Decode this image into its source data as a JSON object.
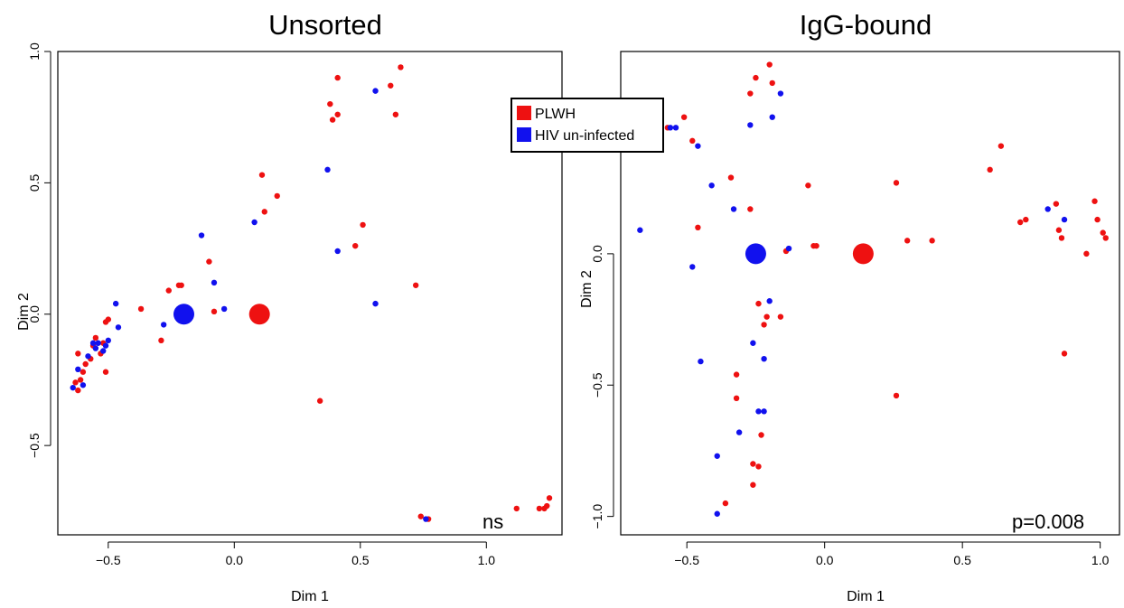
{
  "colors": {
    "PLWH": "#ee1111",
    "HIV un-infected": "#1111ee"
  },
  "legend": {
    "position": "top-center",
    "entries": [
      {
        "label": "PLWH",
        "color": "#ee1111"
      },
      {
        "label": "HIV un-infected",
        "color": "#1111ee"
      }
    ]
  },
  "chart_data": [
    {
      "type": "scatter",
      "title": "Unsorted",
      "xlabel": "Dim 1",
      "ylabel": "Dim 2",
      "xlim": [
        -0.7,
        1.3
      ],
      "ylim": [
        -0.84,
        1.0
      ],
      "xticks": [
        -0.5,
        0.0,
        0.5,
        1.0
      ],
      "xtick_labels": [
        "−0.5",
        "0.0",
        "0.5",
        "1.0"
      ],
      "yticks": [
        -0.5,
        0.0,
        0.5,
        1.0
      ],
      "ytick_labels": [
        "−0.5",
        "0.0",
        "0.5",
        "1.0"
      ],
      "annotation": "ns",
      "centroids": [
        {
          "series": "HIV un-infected",
          "x": -0.2,
          "y": 0.0
        },
        {
          "series": "PLWH",
          "x": 0.1,
          "y": 0.0
        }
      ],
      "series": [
        {
          "name": "PLWH",
          "points": [
            [
              -0.63,
              -0.26
            ],
            [
              -0.62,
              -0.29
            ],
            [
              -0.61,
              -0.25
            ],
            [
              -0.6,
              -0.22
            ],
            [
              -0.59,
              -0.19
            ],
            [
              -0.57,
              -0.17
            ],
            [
              -0.56,
              -0.12
            ],
            [
              -0.55,
              -0.09
            ],
            [
              -0.53,
              -0.15
            ],
            [
              -0.52,
              -0.11
            ],
            [
              -0.51,
              -0.22
            ],
            [
              -0.51,
              -0.03
            ],
            [
              -0.5,
              -0.02
            ],
            [
              -0.62,
              -0.15
            ],
            [
              -0.37,
              0.02
            ],
            [
              -0.29,
              -0.1
            ],
            [
              -0.26,
              0.09
            ],
            [
              -0.22,
              0.11
            ],
            [
              -0.21,
              0.11
            ],
            [
              -0.1,
              0.2
            ],
            [
              -0.08,
              0.01
            ],
            [
              0.11,
              0.53
            ],
            [
              0.12,
              0.39
            ],
            [
              0.17,
              0.45
            ],
            [
              0.34,
              -0.33
            ],
            [
              0.38,
              0.8
            ],
            [
              0.39,
              0.74
            ],
            [
              0.41,
              0.76
            ],
            [
              0.41,
              0.9
            ],
            [
              0.48,
              0.26
            ],
            [
              0.51,
              0.34
            ],
            [
              0.62,
              0.87
            ],
            [
              0.64,
              0.76
            ],
            [
              0.66,
              0.94
            ],
            [
              0.72,
              0.11
            ],
            [
              0.74,
              -0.77
            ],
            [
              0.77,
              -0.78
            ],
            [
              1.12,
              -0.74
            ],
            [
              1.21,
              -0.74
            ],
            [
              1.23,
              -0.74
            ],
            [
              1.24,
              -0.73
            ],
            [
              1.25,
              -0.7
            ]
          ]
        },
        {
          "name": "HIV un-infected",
          "points": [
            [
              -0.64,
              -0.28
            ],
            [
              -0.62,
              -0.21
            ],
            [
              -0.6,
              -0.27
            ],
            [
              -0.58,
              -0.16
            ],
            [
              -0.56,
              -0.11
            ],
            [
              -0.55,
              -0.13
            ],
            [
              -0.54,
              -0.11
            ],
            [
              -0.52,
              -0.14
            ],
            [
              -0.51,
              -0.12
            ],
            [
              -0.5,
              -0.1
            ],
            [
              -0.47,
              0.04
            ],
            [
              -0.46,
              -0.05
            ],
            [
              -0.28,
              -0.04
            ],
            [
              -0.13,
              0.3
            ],
            [
              -0.08,
              0.12
            ],
            [
              -0.04,
              0.02
            ],
            [
              0.08,
              0.35
            ],
            [
              0.37,
              0.55
            ],
            [
              0.41,
              0.24
            ],
            [
              0.56,
              0.85
            ],
            [
              0.56,
              0.04
            ],
            [
              0.76,
              -0.78
            ]
          ]
        }
      ]
    },
    {
      "type": "scatter",
      "title": "IgG-bound",
      "xlabel": "Dim 1",
      "ylabel": "Dim 2",
      "xlim": [
        -0.74,
        1.07
      ],
      "ylim": [
        -1.07,
        0.77
      ],
      "xticks": [
        -0.5,
        0.0,
        0.5,
        1.0
      ],
      "xtick_labels": [
        "−0.5",
        "0.0",
        "0.5",
        "1.0"
      ],
      "yticks": [
        -1.0,
        -0.5,
        0.0
      ],
      "ytick_labels": [
        "−1.0",
        "−0.5",
        "0.0"
      ],
      "annotation": "p=0.008",
      "centroids": [
        {
          "series": "HIV un-infected",
          "x": -0.25,
          "y": 0.0
        },
        {
          "series": "PLWH",
          "x": 0.14,
          "y": 0.0
        }
      ],
      "series": [
        {
          "name": "PLWH",
          "points": [
            [
              -0.57,
              0.48
            ],
            [
              -0.51,
              0.52
            ],
            [
              -0.48,
              0.43
            ],
            [
              -0.46,
              0.1
            ],
            [
              -0.34,
              0.29
            ],
            [
              -0.27,
              0.61
            ],
            [
              -0.27,
              0.17
            ],
            [
              -0.25,
              0.67
            ],
            [
              -0.2,
              0.72
            ],
            [
              -0.19,
              0.65
            ],
            [
              -0.24,
              -0.19
            ],
            [
              -0.22,
              -0.27
            ],
            [
              -0.21,
              -0.24
            ],
            [
              -0.16,
              -0.24
            ],
            [
              -0.14,
              0.01
            ],
            [
              -0.06,
              0.26
            ],
            [
              -0.04,
              0.03
            ],
            [
              -0.03,
              0.03
            ],
            [
              0.26,
              0.27
            ],
            [
              0.3,
              0.05
            ],
            [
              0.39,
              0.05
            ],
            [
              0.6,
              0.32
            ],
            [
              0.64,
              0.41
            ],
            [
              0.71,
              0.12
            ],
            [
              0.73,
              0.13
            ],
            [
              0.84,
              0.19
            ],
            [
              0.85,
              0.09
            ],
            [
              0.86,
              0.06
            ],
            [
              0.95,
              0.0
            ],
            [
              0.98,
              0.2
            ],
            [
              0.99,
              0.13
            ],
            [
              1.01,
              0.08
            ],
            [
              1.02,
              0.06
            ],
            [
              0.87,
              -0.38
            ],
            [
              0.26,
              -0.54
            ],
            [
              -0.32,
              -0.46
            ],
            [
              -0.32,
              -0.55
            ],
            [
              -0.23,
              -0.69
            ],
            [
              -0.26,
              -0.8
            ],
            [
              -0.24,
              -0.81
            ],
            [
              -0.26,
              -0.88
            ],
            [
              -0.36,
              -0.95
            ]
          ]
        },
        {
          "name": "HIV un-infected",
          "points": [
            [
              -0.67,
              0.09
            ],
            [
              -0.56,
              0.48
            ],
            [
              -0.54,
              0.48
            ],
            [
              -0.48,
              -0.05
            ],
            [
              -0.46,
              0.41
            ],
            [
              -0.41,
              0.26
            ],
            [
              -0.33,
              0.17
            ],
            [
              -0.27,
              0.49
            ],
            [
              -0.19,
              0.52
            ],
            [
              -0.16,
              0.61
            ],
            [
              -0.13,
              0.02
            ],
            [
              -0.2,
              -0.18
            ],
            [
              -0.26,
              -0.34
            ],
            [
              -0.22,
              -0.4
            ],
            [
              -0.45,
              -0.41
            ],
            [
              -0.24,
              -0.6
            ],
            [
              -0.22,
              -0.6
            ],
            [
              -0.31,
              -0.68
            ],
            [
              -0.39,
              -0.77
            ],
            [
              -0.39,
              -0.99
            ],
            [
              0.81,
              0.17
            ],
            [
              0.87,
              0.13
            ]
          ]
        }
      ]
    }
  ]
}
